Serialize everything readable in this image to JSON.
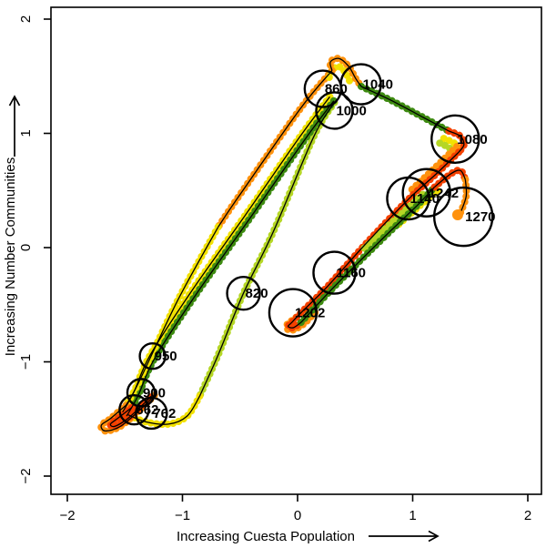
{
  "figure": {
    "x_axis": {
      "label": "Increasing Cuesta Population",
      "tick_labels": [
        "−2",
        "−1",
        "0",
        "1",
        "2"
      ]
    },
    "y_axis": {
      "label": "Increasing Number Communities",
      "tick_labels": [
        "−2",
        "−1",
        "0",
        "1",
        "2"
      ]
    }
  },
  "chart_data": {
    "type": "scatter",
    "title": "",
    "xlabel": "Increasing Cuesta Population",
    "ylabel": "Increasing Number Communities",
    "xlim": [
      -2.15,
      2.15
    ],
    "ylim": [
      -2.15,
      2.15
    ],
    "x_ticks": [
      -2,
      -1,
      0,
      1,
      2
    ],
    "y_ticks": [
      -2,
      -1,
      0,
      1,
      2
    ],
    "grid": false,
    "legend": "none",
    "colors": {
      "green": "#3d8a10",
      "chartreuse": "#b5d625",
      "yellow": "#f2e103",
      "orange": "#ff920e",
      "red": "#f44000",
      "line": "#000000",
      "circle": "#000000"
    },
    "labeled_points": [
      {
        "label": "662",
        "x": -1.42,
        "y": -1.42,
        "r": 16
      },
      {
        "label": "762",
        "x": -1.27,
        "y": -1.45,
        "r": 17
      },
      {
        "label": "820",
        "x": -0.47,
        "y": -0.4,
        "r": 18
      },
      {
        "label": "860",
        "x": 0.22,
        "y": 1.39,
        "r": 20
      },
      {
        "label": "900",
        "x": -1.36,
        "y": -1.27,
        "r": 15
      },
      {
        "label": "950",
        "x": -1.26,
        "y": -0.95,
        "r": 14
      },
      {
        "label": "1000",
        "x": 0.32,
        "y": 1.2,
        "r": 20
      },
      {
        "label": "1040",
        "x": 0.55,
        "y": 1.43,
        "r": 22
      },
      {
        "label": "1080",
        "x": 1.37,
        "y": 0.95,
        "r": 26
      },
      {
        "label": "1140",
        "x": 0.96,
        "y": 0.43,
        "r": 23
      },
      {
        "label": "1160",
        "x": 0.32,
        "y": -0.22,
        "r": 23
      },
      {
        "label": "1202",
        "x": -0.04,
        "y": -0.57,
        "r": 26
      },
      {
        "label": "1242",
        "x": 1.12,
        "y": 0.48,
        "r": 26
      },
      {
        "label": "1270",
        "x": 1.44,
        "y": 0.27,
        "r": 32
      }
    ],
    "trajectory_strands": [
      {
        "color": "chartreuse",
        "line": true,
        "points": [
          [
            0.32,
            1.27
          ],
          [
            0.14,
            0.97
          ],
          [
            -0.21,
            0.14
          ],
          [
            -0.47,
            -0.4
          ],
          [
            -0.69,
            -0.94
          ],
          [
            -0.85,
            -1.3
          ]
        ]
      },
      {
        "color": "yellow",
        "line": true,
        "points": [
          [
            -0.85,
            -1.3
          ],
          [
            -0.96,
            -1.475
          ],
          [
            -1.12,
            -1.545
          ],
          [
            -1.32,
            -1.525
          ],
          [
            -1.48,
            -1.46
          ]
        ]
      },
      {
        "color": "yellow",
        "line": true,
        "points": [
          [
            0.28,
            1.32
          ],
          [
            0.02,
            0.97
          ],
          [
            -0.45,
            0.29
          ],
          [
            -0.92,
            -0.38
          ],
          [
            -1.28,
            -0.94
          ],
          [
            -1.42,
            -1.26
          ],
          [
            -1.52,
            -1.44
          ]
        ]
      },
      {
        "color": "green",
        "line": true,
        "points": [
          [
            0.315,
            1.285
          ],
          [
            0.055,
            0.935
          ],
          [
            -0.415,
            0.255
          ],
          [
            -0.885,
            -0.415
          ],
          [
            -1.245,
            -0.975
          ],
          [
            -1.385,
            -1.295
          ],
          [
            -1.485,
            -1.475
          ]
        ]
      },
      {
        "color": "orange",
        "line": true,
        "points": [
          [
            0.3,
            1.55
          ],
          [
            0.02,
            1.21
          ],
          [
            -0.51,
            0.45
          ],
          [
            -0.69,
            0.18
          ]
        ]
      },
      {
        "color": "yellow",
        "line": true,
        "points": [
          [
            -0.69,
            0.18
          ],
          [
            -1.04,
            -0.46
          ],
          [
            -1.38,
            -1.18
          ],
          [
            -1.49,
            -1.38
          ]
        ]
      },
      {
        "color": "orange",
        "line": true,
        "points": [
          [
            -1.49,
            -1.38
          ],
          [
            -1.63,
            -1.5
          ],
          [
            -1.705,
            -1.555
          ],
          [
            -1.67,
            -1.605
          ],
          [
            -1.54,
            -1.565
          ],
          [
            -1.38,
            -1.43
          ],
          [
            -1.22,
            -1.27
          ]
        ]
      },
      {
        "color": "red",
        "line": true,
        "points": [
          [
            -1.44,
            -1.4
          ],
          [
            -1.57,
            -1.5
          ],
          [
            -1.625,
            -1.545
          ],
          [
            -1.59,
            -1.565
          ],
          [
            -1.48,
            -1.5
          ],
          [
            -1.36,
            -1.39
          ],
          [
            -1.26,
            -1.29
          ]
        ]
      },
      {
        "color": "yellow",
        "line": false,
        "points": [
          [
            0.275,
            1.49
          ],
          [
            0.3,
            1.555
          ],
          [
            0.36,
            1.585
          ],
          [
            0.42,
            1.525
          ],
          [
            0.46,
            1.44
          ]
        ]
      },
      {
        "color": "orange",
        "line": true,
        "points": [
          [
            0.3,
            1.55
          ],
          [
            0.285,
            1.625
          ],
          [
            0.36,
            1.655
          ],
          [
            0.445,
            1.585
          ],
          [
            0.505,
            1.48
          ],
          [
            0.553,
            1.41
          ]
        ]
      },
      {
        "color": "green",
        "line": true,
        "points": [
          [
            0.553,
            1.41
          ],
          [
            0.81,
            1.29
          ],
          [
            1.11,
            1.13
          ],
          [
            1.315,
            1.02
          ]
        ]
      },
      {
        "color": "yellow",
        "line": false,
        "points": [
          [
            1.27,
            0.955
          ],
          [
            1.36,
            0.915
          ],
          [
            1.385,
            0.86
          ],
          [
            1.355,
            0.81
          ]
        ]
      },
      {
        "color": "chartreuse",
        "line": false,
        "points": [
          [
            1.235,
            0.915
          ],
          [
            1.315,
            0.875
          ],
          [
            1.335,
            0.835
          ]
        ]
      },
      {
        "color": "red",
        "line": true,
        "points": [
          [
            1.315,
            1.02
          ],
          [
            1.415,
            0.975
          ],
          [
            1.445,
            0.9
          ],
          [
            1.4,
            0.835
          ]
        ]
      },
      {
        "color": "orange",
        "line": false,
        "points": [
          [
            1.385,
            0.885
          ],
          [
            1.2,
            0.705
          ],
          [
            0.99,
            0.505
          ]
        ]
      },
      {
        "color": "orange",
        "line": false,
        "points": [
          [
            0.17,
            -0.445
          ],
          [
            0.0,
            -0.6
          ],
          [
            -0.095,
            -0.68
          ],
          [
            -0.06,
            -0.725
          ],
          [
            0.045,
            -0.675
          ],
          [
            0.16,
            -0.56
          ]
        ]
      },
      {
        "color": "red",
        "line": true,
        "points": [
          [
            1.4,
            0.835
          ],
          [
            1.21,
            0.65
          ],
          [
            0.96,
            0.42
          ],
          [
            0.58,
            0.02
          ],
          [
            0.26,
            -0.34
          ],
          [
            0.03,
            -0.57
          ],
          [
            -0.05,
            -0.655
          ],
          [
            -0.082,
            -0.69
          ],
          [
            -0.035,
            -0.7
          ],
          [
            0.03,
            -0.655
          ]
        ]
      },
      {
        "color": "chartreuse",
        "line": false,
        "points": [
          [
            0.58,
            -0.005
          ],
          [
            0.95,
            0.34
          ],
          [
            1.12,
            0.495
          ]
        ]
      },
      {
        "color": "yellow",
        "line": false,
        "points": [
          [
            0.88,
            0.205
          ],
          [
            1.1,
            0.4
          ],
          [
            1.215,
            0.5
          ]
        ]
      },
      {
        "color": "green",
        "line": true,
        "points": [
          [
            0.03,
            -0.655
          ],
          [
            0.34,
            -0.32
          ],
          [
            0.74,
            0.08
          ],
          [
            1.04,
            0.37
          ],
          [
            1.19,
            0.53
          ]
        ]
      },
      {
        "color": "red",
        "line": true,
        "points": [
          [
            1.19,
            0.53
          ],
          [
            1.33,
            0.645
          ],
          [
            1.415,
            0.675
          ],
          [
            1.458,
            0.595
          ]
        ]
      },
      {
        "color": "orange",
        "line": true,
        "points": [
          [
            1.458,
            0.595
          ],
          [
            1.465,
            0.45
          ],
          [
            1.415,
            0.305
          ]
        ]
      }
    ],
    "end_marker": {
      "x": 1.391,
      "y": 0.287,
      "r": 6,
      "color": "orange"
    }
  }
}
